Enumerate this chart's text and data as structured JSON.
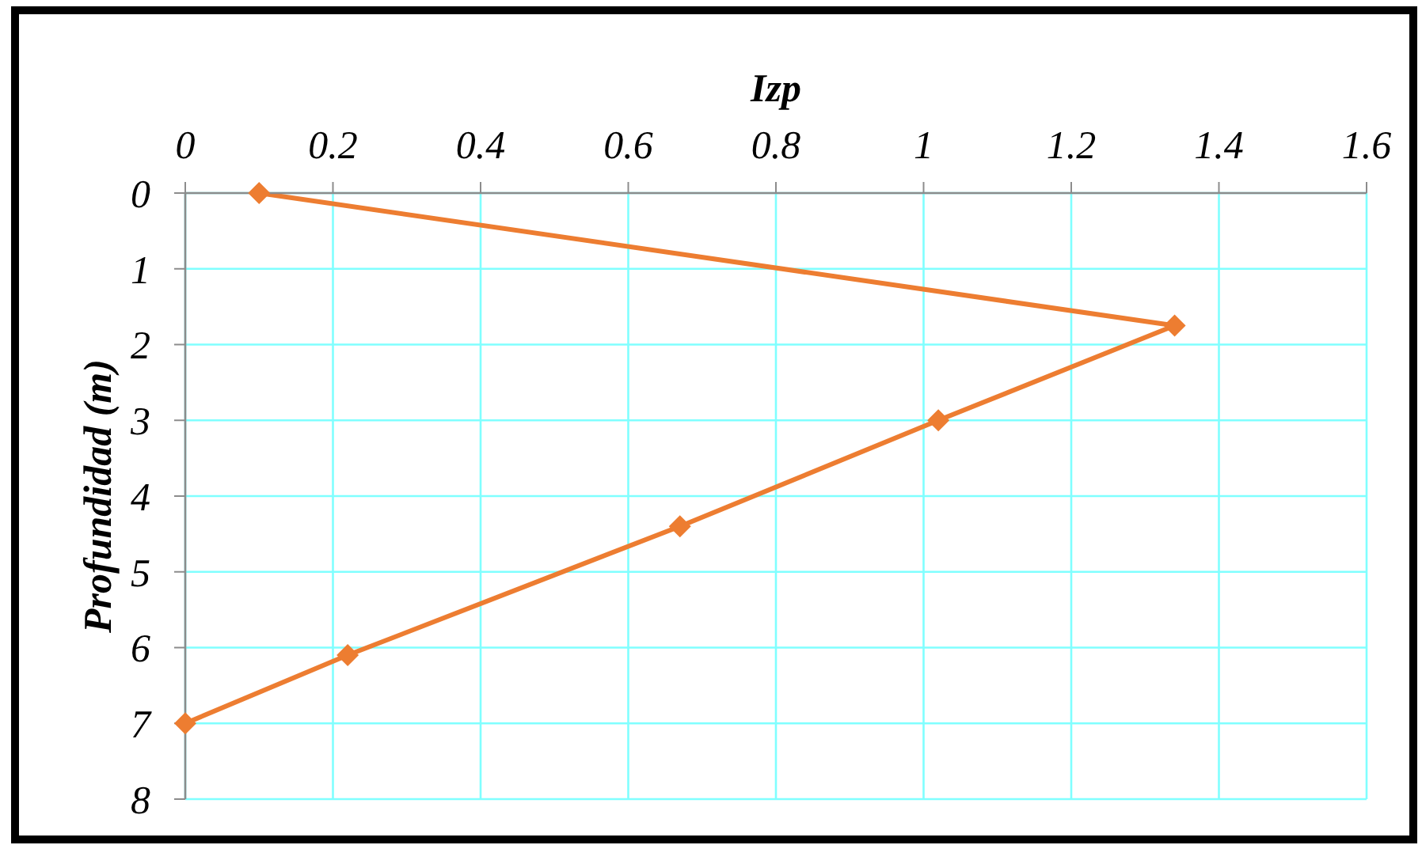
{
  "chart_data": {
    "type": "line",
    "xlabel": "Izp",
    "ylabel": "Profundidad (m)",
    "x": [
      0.1,
      1.34,
      1.02,
      0.67,
      0.22,
      0
    ],
    "series": [
      {
        "color": "#ed7d31",
        "values": [
          0,
          1.75,
          3,
          4.4,
          6.1,
          7
        ]
      }
    ],
    "xlim": [
      0,
      1.6
    ],
    "xticks": [
      0,
      0.2,
      0.4,
      0.6,
      0.8,
      1,
      1.2,
      1.4,
      1.6
    ],
    "ylim": [
      8,
      0
    ],
    "yticks": [
      0,
      1,
      2,
      3,
      4,
      5,
      6,
      7,
      8
    ],
    "grid": true,
    "marker": "diamond",
    "line_style": "solid"
  }
}
